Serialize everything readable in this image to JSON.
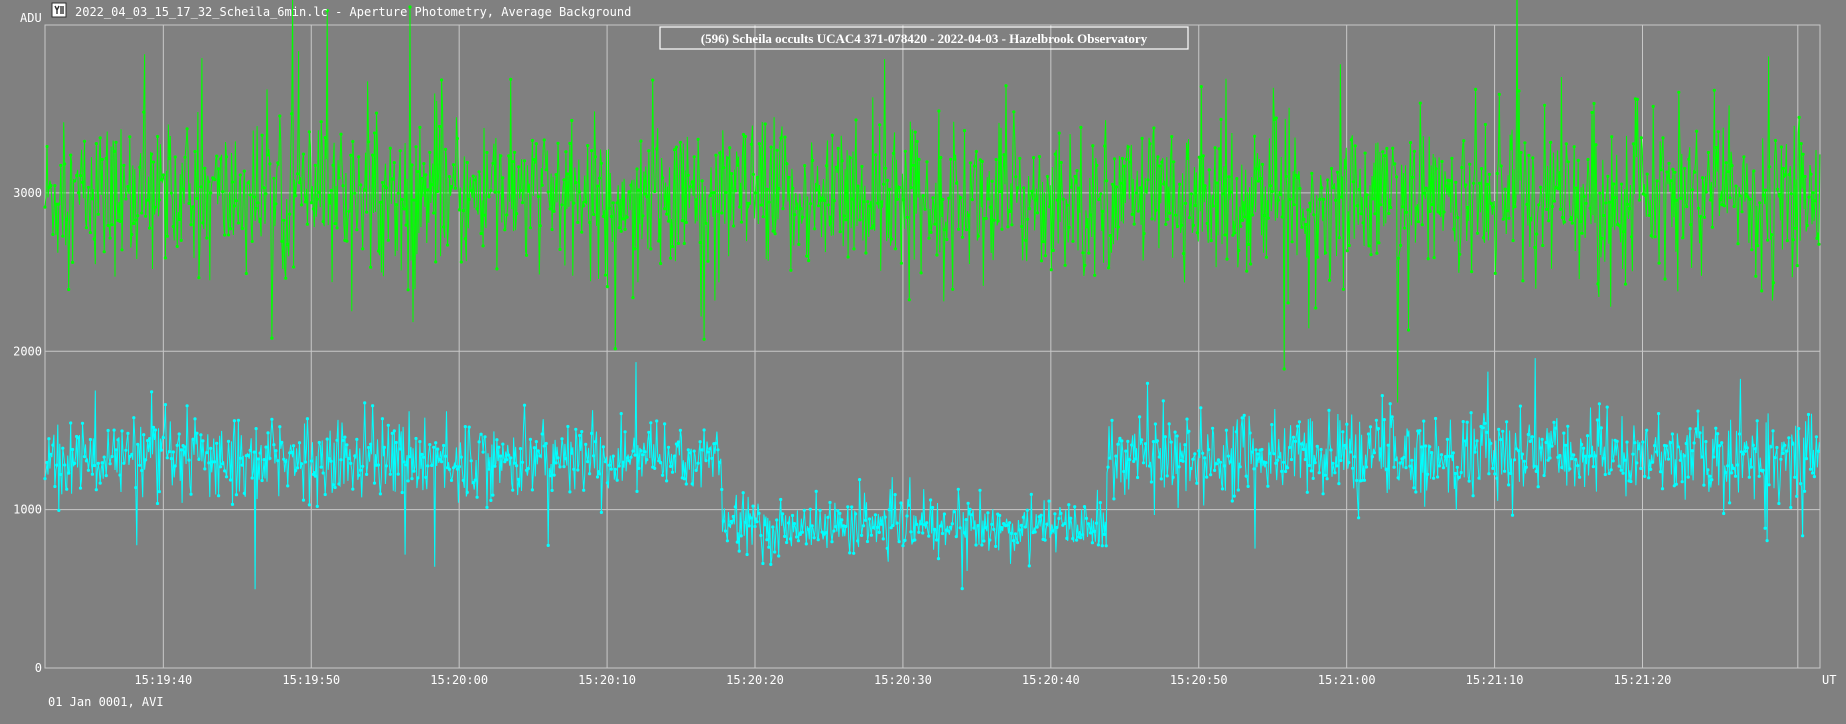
{
  "window": {
    "title": "2022_04_03_15_17_32_Scheila_6min.lc - Aperture Photometry, Average Background",
    "footer": "01 Jan 0001, AVI"
  },
  "chart_data": {
    "type": "line",
    "title": "(596) Scheila occults UCAC4 371-078420 - 2022-04-03 - Hazelbrook Observatory",
    "ylabel": "ADU",
    "xlabel": "UT",
    "x_range": [
      "15:19:32",
      "15:21:32"
    ],
    "ylim": [
      0,
      4060
    ],
    "y_ticks": [
      0,
      1000,
      2000,
      3000
    ],
    "x_ticks": [
      "15:19:40",
      "15:19:50",
      "15:20:00",
      "15:20:10",
      "15:20:20",
      "15:20:30",
      "15:20:40",
      "15:20:50",
      "15:21:00",
      "15:21:10",
      "15:21:20"
    ],
    "grid": true,
    "series": [
      {
        "color": "#00ff00",
        "segments": [
          {
            "x_start": "15:19:32",
            "x_end": "15:21:32",
            "mean": 2980,
            "spread": 300
          }
        ]
      },
      {
        "color": "#00ffff",
        "segments": [
          {
            "x_start": "15:19:32",
            "x_end": "15:20:17.8",
            "mean": 1320,
            "spread": 160
          },
          {
            "x_start": "15:20:17.8",
            "x_end": "15:20:43.8",
            "mean": 890,
            "spread": 110
          },
          {
            "x_start": "15:20:43.8",
            "x_end": "15:21:32",
            "mean": 1340,
            "spread": 170
          }
        ]
      }
    ]
  },
  "colors": {
    "background": "#808080",
    "grid": "#c8c8c8",
    "text": "#ffffff"
  }
}
